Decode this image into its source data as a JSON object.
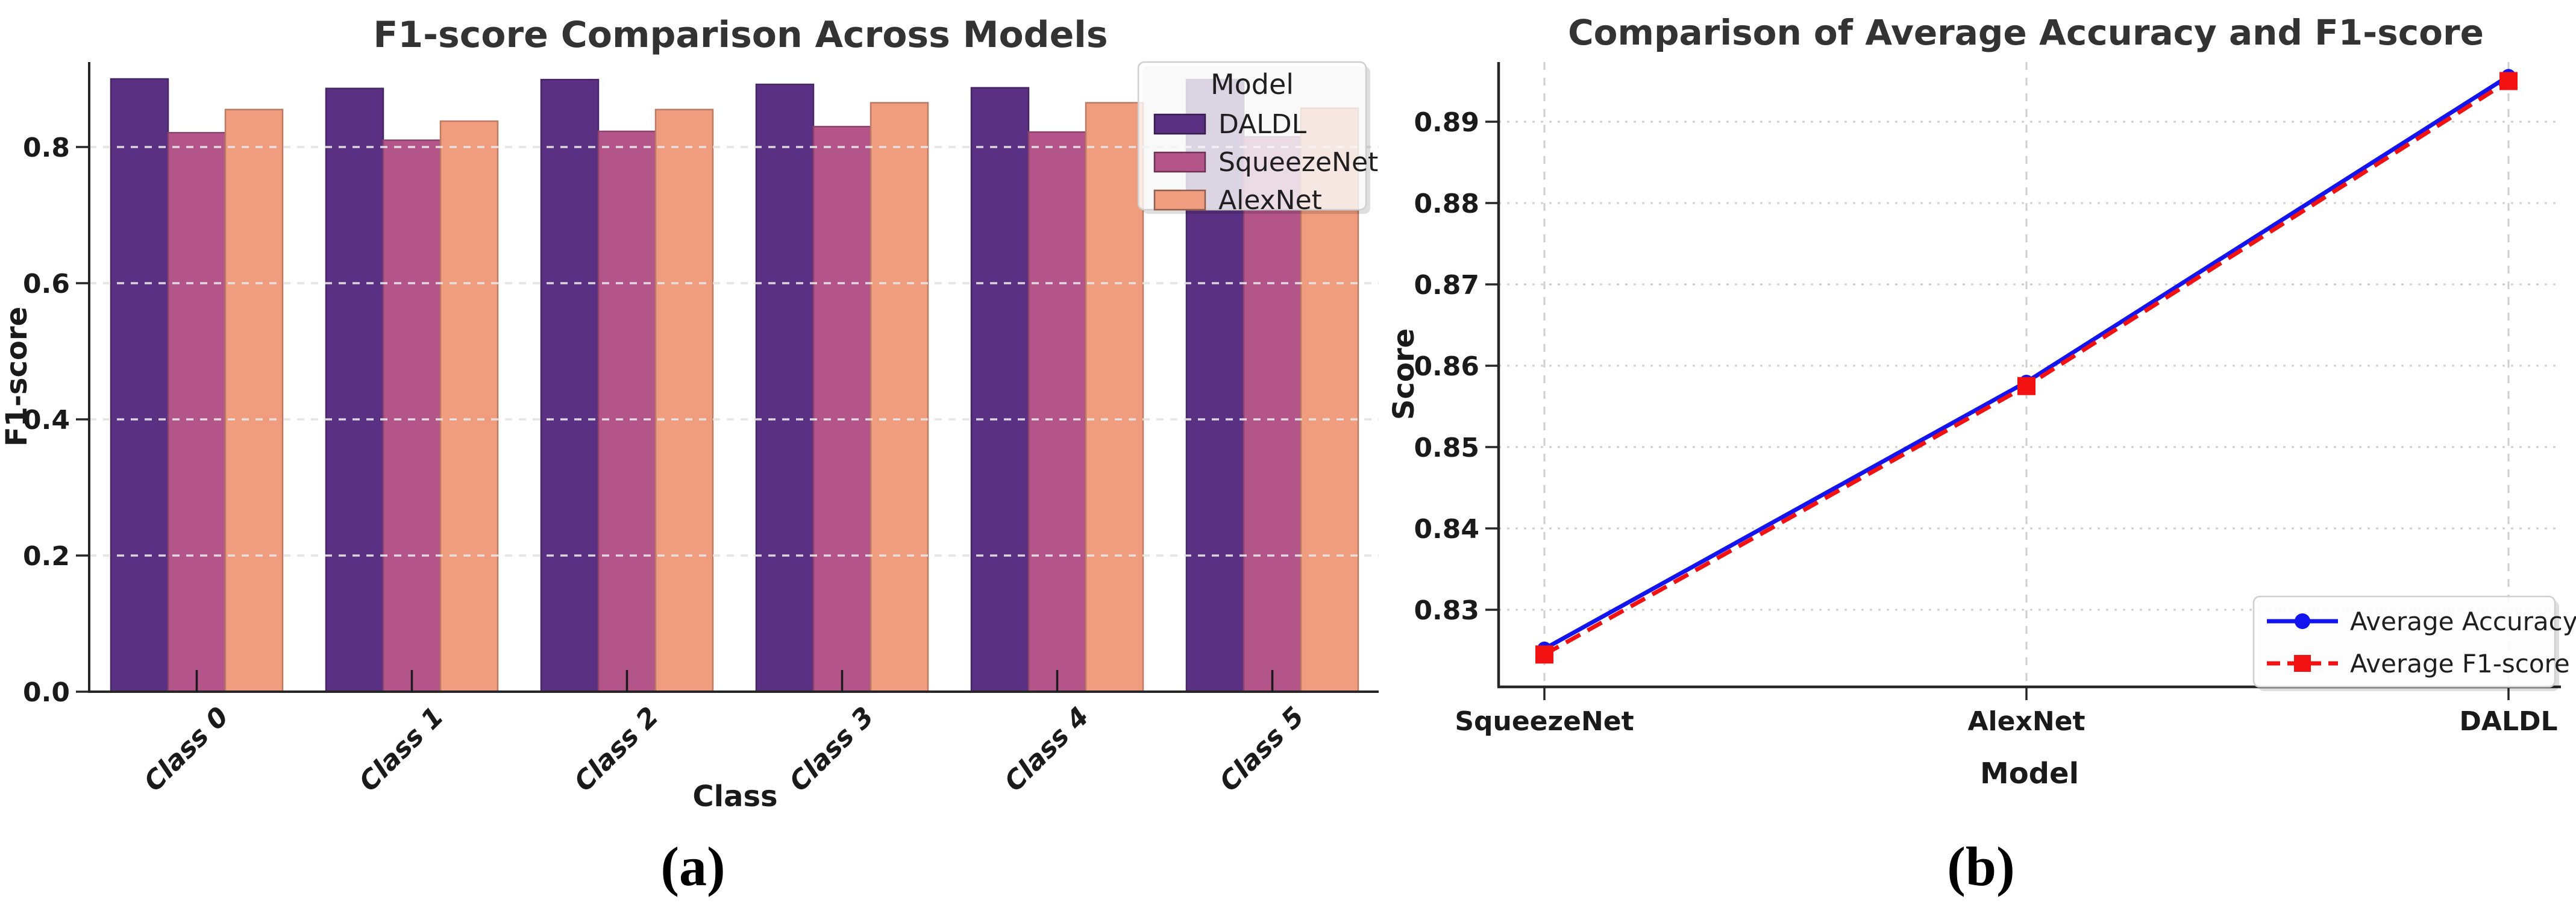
{
  "figure": {
    "captions": {
      "a": "(a)",
      "b": "(b)"
    },
    "background": "#ffffff"
  },
  "chart_data": [
    {
      "id": "panel-a",
      "type": "bar",
      "title": "F1-score Comparison Across Models",
      "xlabel": "Class",
      "ylabel": "F1-score",
      "categories": [
        "Class 0",
        "Class 1",
        "Class 2",
        "Class 3",
        "Class 4",
        "Class 5"
      ],
      "series": [
        {
          "name": "DALDL",
          "color": "#5a3182",
          "values": [
            0.9,
            0.886,
            0.899,
            0.892,
            0.887,
            0.899
          ]
        },
        {
          "name": "SqueezeNet",
          "color": "#b4558a",
          "values": [
            0.821,
            0.81,
            0.823,
            0.83,
            0.822,
            0.815
          ]
        },
        {
          "name": "AlexNet",
          "color": "#f09c7e",
          "values": [
            0.855,
            0.838,
            0.855,
            0.865,
            0.865,
            0.857
          ]
        }
      ],
      "ylim": [
        0.0,
        0.925
      ],
      "yticks": [
        0.0,
        0.2,
        0.4,
        0.6,
        0.8
      ],
      "ytick_labels": [
        "0.0",
        "0.2",
        "0.4",
        "0.6",
        "0.8"
      ],
      "legend_title": "Model",
      "legend_position": "upper right",
      "grid": "horizontal-dashed",
      "grid_color": "#d4d4d4",
      "spine_color": "#262626",
      "text_color": "#1a1a1a",
      "title_color": "#333333"
    },
    {
      "id": "panel-b",
      "type": "line",
      "title": "Comparison of Average Accuracy and F1-score",
      "xlabel": "Model",
      "ylabel": "Score",
      "categories": [
        "SqueezeNet",
        "AlexNet",
        "DALDL"
      ],
      "series": [
        {
          "name": "Average Accuracy",
          "color": "#1414ee",
          "line_style": "solid",
          "marker": "circle",
          "values": [
            0.8252,
            0.858,
            0.8956
          ]
        },
        {
          "name": "Average F1-score",
          "color": "#f21212",
          "line_style": "dashed",
          "marker": "square",
          "values": [
            0.8245,
            0.8575,
            0.895
          ]
        }
      ],
      "ylim": [
        0.8205,
        0.8975
      ],
      "yticks": [
        0.83,
        0.84,
        0.85,
        0.86,
        0.87,
        0.88,
        0.89
      ],
      "ytick_labels": [
        "0.83",
        "0.84",
        "0.85",
        "0.86",
        "0.87",
        "0.88",
        "0.89"
      ],
      "legend_position": "lower right",
      "grid": "x-dashed y-dotted",
      "grid_color": "#cfcfcf",
      "spine_color": "#262626",
      "text_color": "#1a1a1a",
      "title_color": "#333333"
    }
  ]
}
